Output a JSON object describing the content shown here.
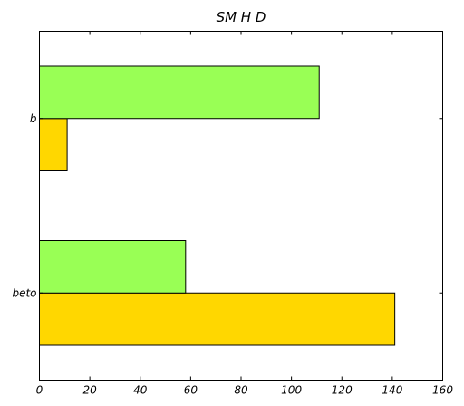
{
  "chart_data": {
    "type": "bar",
    "orientation": "horizontal",
    "title": "SM H D",
    "xlabel": "",
    "ylabel": "",
    "categories": [
      "beto",
      "b"
    ],
    "series": [
      {
        "values": [
          141,
          11
        ],
        "color": "#FFD700"
      },
      {
        "values": [
          58,
          111
        ],
        "color": "#99FF55"
      }
    ],
    "xlim": [
      0,
      160
    ],
    "xticks": [
      0,
      20,
      40,
      60,
      80,
      100,
      120,
      140,
      160
    ],
    "grid": false,
    "legend": "none"
  }
}
